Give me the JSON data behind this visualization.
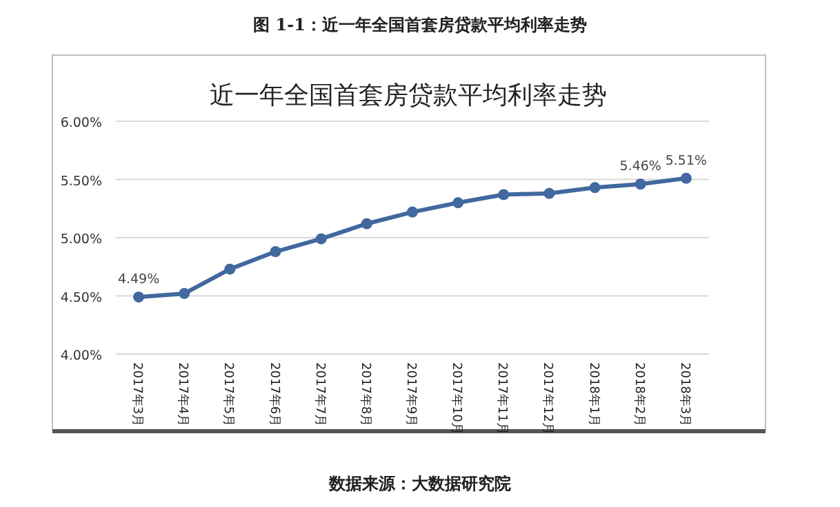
{
  "chart_data": {
    "type": "line",
    "title": "近一年全国首套房贷款平均利率走势",
    "categories": [
      "2017年3月",
      "2017年4月",
      "2017年5月",
      "2017年6月",
      "2017年7月",
      "2017年8月",
      "2017年9月",
      "2017年10月",
      "2017年11月",
      "2017年12月",
      "2018年1月",
      "2018年2月",
      "2018年3月"
    ],
    "series": [
      {
        "color": "#41689f",
        "values": [
          4.49,
          4.52,
          4.73,
          4.88,
          4.99,
          5.12,
          5.22,
          5.3,
          5.37,
          5.38,
          5.43,
          5.46,
          5.51
        ],
        "value_labels": [
          "4.49%",
          null,
          null,
          null,
          null,
          null,
          null,
          null,
          null,
          null,
          null,
          "5.46%",
          "5.51%"
        ]
      }
    ],
    "ylim": [
      4,
      6
    ],
    "yticks": [
      {
        "value": 4,
        "label": "4.00%"
      },
      {
        "value": 4.5,
        "label": "4.50%"
      },
      {
        "value": 5,
        "label": "5.00%"
      },
      {
        "value": 5.5,
        "label": "5.50%"
      },
      {
        "value": 6,
        "label": "6.00%"
      }
    ],
    "grid": "y",
    "marker": "circle",
    "line_style": "solid",
    "annotations": [
      "图 1-1：近一年全国首套房贷款平均利率走势",
      "数据来源：大数据研究院"
    ]
  }
}
